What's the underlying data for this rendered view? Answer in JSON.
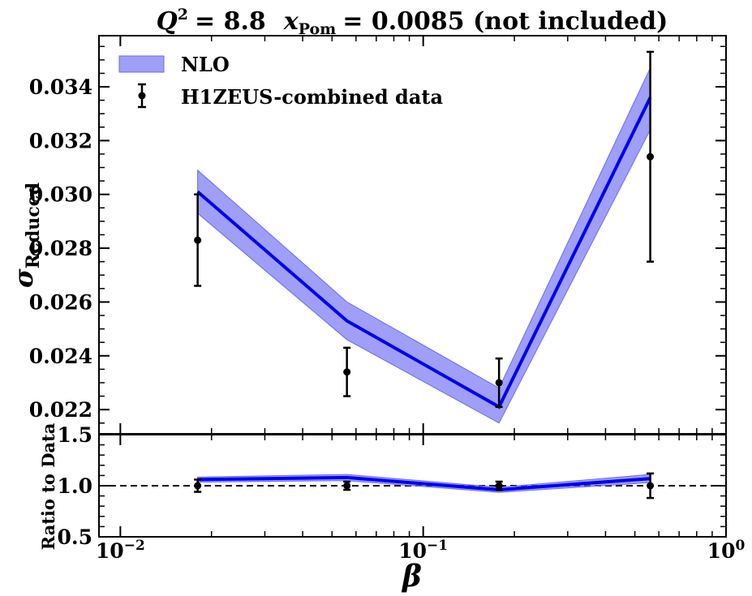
{
  "colors": {
    "band": "#6b6bf2",
    "band_alpha": 0.65,
    "line": "#0000ee",
    "data": "#000000"
  },
  "chart_data": [
    {
      "panel": "main",
      "type": "line",
      "title_parts": {
        "q_label": "Q",
        "q_exp": "2",
        "q_value": "= 8.8",
        "x_label": "x",
        "x_sub": "Pom",
        "x_value": "= 0.0085 (not included)"
      },
      "xlabel": "β",
      "ylabel": "σ",
      "ylabel_sub": "Reduced",
      "xscale": "log",
      "xlim": [
        0.0085,
        1.0
      ],
      "ylim": [
        0.0211,
        0.0359
      ],
      "yticks": [
        0.022,
        0.024,
        0.026,
        0.028,
        0.03,
        0.032,
        0.034
      ],
      "ytick_labels": [
        "0.022",
        "0.024",
        "0.026",
        "0.028",
        "0.030",
        "0.032",
        "0.034"
      ],
      "legend": {
        "placement": "top-left",
        "band_label": "NLO",
        "data_label": "H1ZEUS-combined data"
      },
      "series": [
        {
          "name": "NLO",
          "kind": "line_with_band",
          "x": [
            0.018,
            0.056,
            0.178,
            0.562
          ],
          "y": [
            0.0301,
            0.0253,
            0.0221,
            0.0336
          ],
          "y_low": [
            0.0293,
            0.0246,
            0.0215,
            0.0324
          ],
          "y_high": [
            0.0309,
            0.026,
            0.0228,
            0.0347
          ]
        },
        {
          "name": "H1ZEUS-combined data",
          "kind": "errorbar",
          "x": [
            0.018,
            0.056,
            0.178,
            0.562
          ],
          "y": [
            0.0283,
            0.0234,
            0.023,
            0.0314
          ],
          "yerr": [
            0.0017,
            0.0009,
            0.0009,
            0.0039
          ]
        }
      ]
    },
    {
      "panel": "ratio",
      "type": "line",
      "ylabel": "Ratio to Data",
      "xscale": "log",
      "xlim": [
        0.0085,
        1.0
      ],
      "ylim": [
        0.5,
        1.5
      ],
      "yticks": [
        0.5,
        1.0,
        1.5
      ],
      "ytick_labels": [
        "0.5",
        "1.0",
        "1.5"
      ],
      "xticks": [
        0.01,
        0.1,
        1.0
      ],
      "xtick_labels": [
        {
          "base": "10",
          "exp": "−2"
        },
        {
          "base": "10",
          "exp": "−1"
        },
        {
          "base": "10",
          "exp": "0"
        }
      ],
      "reference_line": 1.0,
      "series": [
        {
          "name": "NLO",
          "kind": "line_with_band",
          "x": [
            0.018,
            0.056,
            0.178,
            0.562
          ],
          "y": [
            1.06,
            1.08,
            0.96,
            1.07
          ],
          "y_low": [
            1.035,
            1.05,
            0.935,
            1.03
          ],
          "y_high": [
            1.085,
            1.11,
            0.985,
            1.11
          ]
        },
        {
          "name": "H1ZEUS-combined data",
          "kind": "errorbar",
          "x": [
            0.018,
            0.056,
            0.178,
            0.562
          ],
          "y": [
            1.0,
            1.0,
            1.0,
            1.0
          ],
          "yerr": [
            0.06,
            0.04,
            0.04,
            0.12
          ]
        }
      ]
    }
  ]
}
